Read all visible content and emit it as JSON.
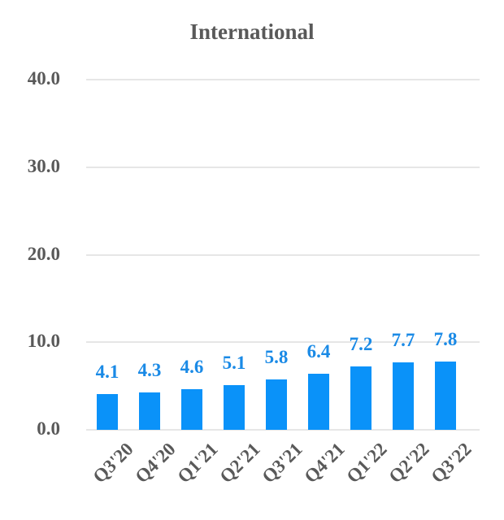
{
  "chart_data": {
    "type": "bar",
    "title": "International",
    "categories": [
      "Q3'20",
      "Q4'20",
      "Q1'21",
      "Q2'21",
      "Q3'21",
      "Q4'21",
      "Q1'22",
      "Q2'22",
      "Q3'22"
    ],
    "values": [
      4.1,
      4.3,
      4.6,
      5.1,
      5.8,
      6.4,
      7.2,
      7.7,
      7.8
    ],
    "value_labels": [
      "4.1",
      "4.3",
      "4.6",
      "5.1",
      "5.8",
      "6.4",
      "7.2",
      "7.7",
      "7.8"
    ],
    "yticks": [
      "0.0",
      "10.0",
      "20.0",
      "30.0",
      "40.0"
    ],
    "ylim": [
      0,
      40
    ],
    "xlabel": "",
    "ylabel": "",
    "grid": true,
    "bar_color": "#0a92f9",
    "label_color": "#1a8ae6"
  }
}
